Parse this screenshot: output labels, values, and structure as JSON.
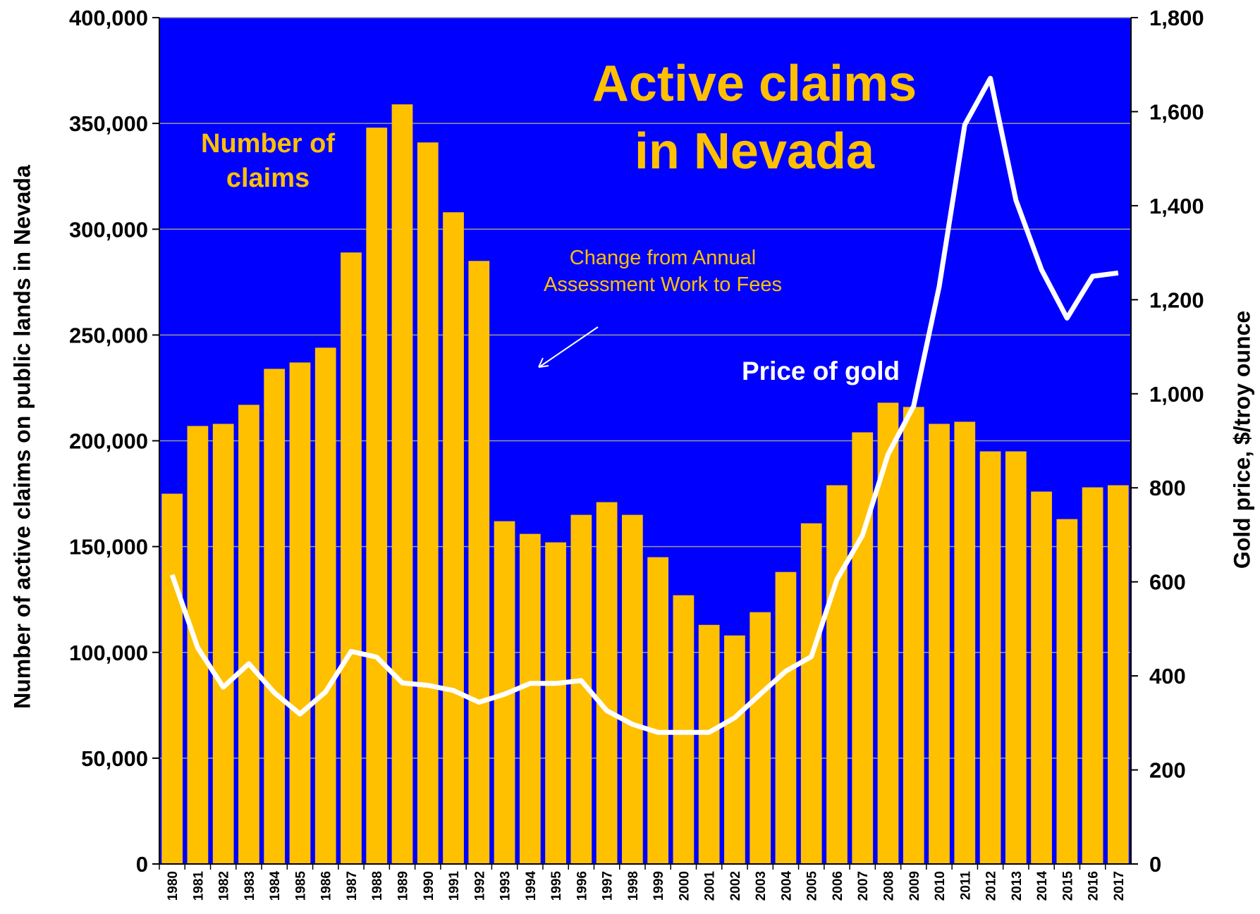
{
  "chart_data": {
    "type": "bar_line",
    "title": "Active claims in Nevada",
    "ylabel": "Number of active claims on public lands in Nevada",
    "y2label": "Gold price, $/troy ounce",
    "annotations": [
      "Number of claims",
      "Change from Annual Assessment Work to Fees",
      "Price of gold"
    ],
    "categories": [
      "1980",
      "1981",
      "1982",
      "1983",
      "1984",
      "1985",
      "1986",
      "1987",
      "1988",
      "1989",
      "1990",
      "1991",
      "1992",
      "1993",
      "1994",
      "1995",
      "1996",
      "1997",
      "1998",
      "1999",
      "2000",
      "2001",
      "2002",
      "2003",
      "2004",
      "2005",
      "2006",
      "2007",
      "2008",
      "2009",
      "2010",
      "2011",
      "2012",
      "2013",
      "2014",
      "2015",
      "2016",
      "2017"
    ],
    "series": [
      {
        "name": "Number of claims",
        "type": "bar",
        "color": "#ffc000",
        "axis": "y",
        "values": [
          175000,
          207000,
          208000,
          217000,
          234000,
          237000,
          244000,
          289000,
          348000,
          359000,
          341000,
          308000,
          285000,
          162000,
          156000,
          152000,
          165000,
          171000,
          165000,
          145000,
          127000,
          113000,
          108000,
          119000,
          138000,
          161000,
          179000,
          204000,
          218000,
          216000,
          208000,
          209000,
          195000,
          195000,
          176000,
          163000,
          178000,
          179000
        ]
      },
      {
        "name": "Price of gold",
        "type": "line",
        "color": "#ffffff",
        "axis": "y2",
        "values": [
          615,
          460,
          376,
          426,
          364,
          319,
          366,
          452,
          440,
          385,
          380,
          369,
          344,
          361,
          384,
          384,
          390,
          326,
          297,
          280,
          280,
          280,
          311,
          361,
          410,
          441,
          605,
          699,
          871,
          974,
          1228,
          1572,
          1671,
          1412,
          1264,
          1161,
          1250,
          1257
        ]
      }
    ],
    "ylim": [
      0,
      400000
    ],
    "yticks": [
      0,
      {
        "value": 50000,
        "label": "50,000"
      },
      {
        "value": 100000,
        "label": "100,000"
      },
      {
        "value": 150000,
        "label": "150,000"
      },
      {
        "value": 200000,
        "label": "200,000"
      },
      {
        "value": 250000,
        "label": "250,000"
      },
      {
        "value": 300000,
        "label": "300,000"
      },
      {
        "value": 350000,
        "label": "350,000"
      },
      {
        "value": 400000,
        "label": "400,000"
      }
    ],
    "y2lim": [
      0,
      1800
    ],
    "y2ticks": [
      0,
      200,
      400,
      600,
      800,
      {
        "value": 1000,
        "label": "1,000"
      },
      {
        "value": 1200,
        "label": "1,200"
      },
      {
        "value": 1400,
        "label": "1,400"
      },
      {
        "value": 1600,
        "label": "1,600"
      },
      {
        "value": 1800,
        "label": "1,800"
      }
    ],
    "grid": true,
    "background": "#0000ff"
  }
}
